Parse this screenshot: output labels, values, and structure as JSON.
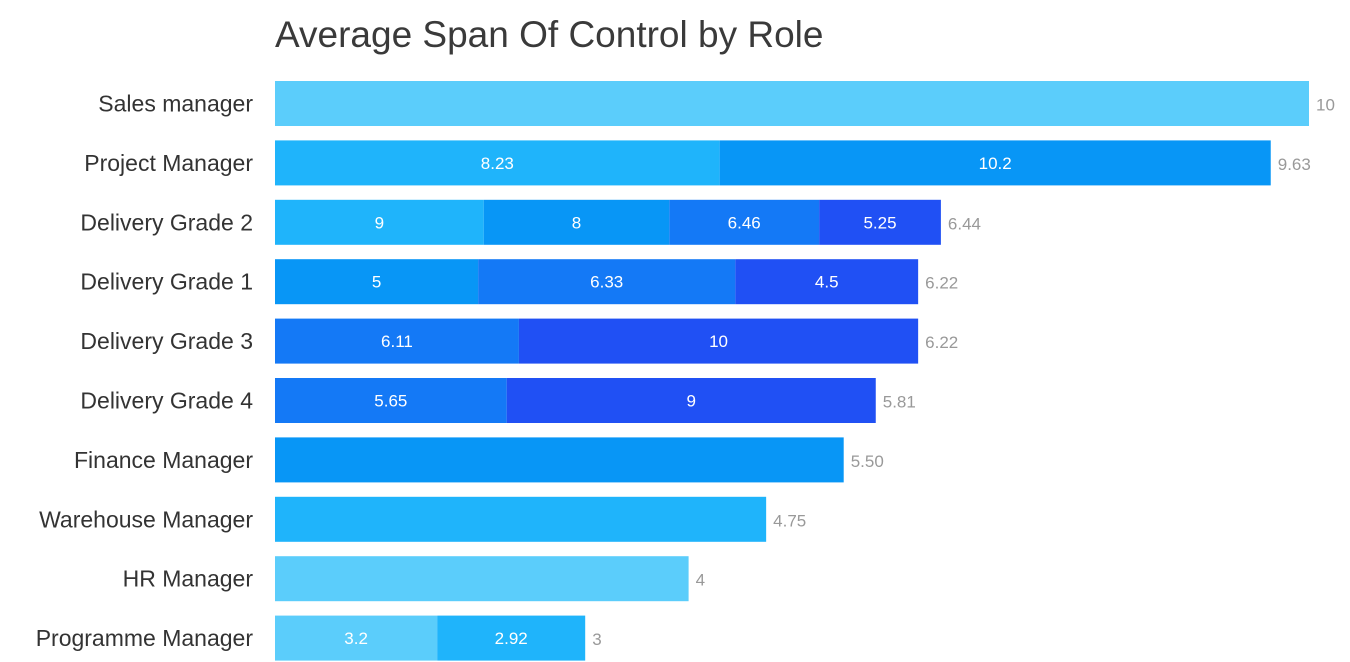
{
  "chart_data": {
    "type": "bar",
    "orientation": "horizontal",
    "stacked": true,
    "title": "Average Span Of Control by Role",
    "xlabel": "",
    "ylabel": "",
    "grid": false,
    "legend": "none",
    "categories": [
      "Sales manager",
      "Project Manager",
      "Delivery Grade 2",
      "Delivery Grade 1",
      "Delivery Grade 3",
      "Delivery Grade 4",
      "Finance Manager",
      "Warehouse Manager",
      "HR Manager",
      "Programme Manager"
    ],
    "totals": [
      "10",
      "9.63",
      "6.44",
      "6.22",
      "6.22",
      "5.81",
      "5.50",
      "4.75",
      "4",
      "3"
    ],
    "total_values": [
      10,
      9.63,
      6.44,
      6.22,
      6.22,
      5.81,
      5.5,
      4.75,
      4,
      3
    ],
    "segments": [
      [
        {
          "label": "",
          "value": 10,
          "color": "#5bcdfb"
        }
      ],
      [
        {
          "label": "8.23",
          "value": 8.23,
          "color": "#1fb4fb"
        },
        {
          "label": "10.2",
          "value": 10.2,
          "color": "#0896f6"
        }
      ],
      [
        {
          "label": "9",
          "value": 9,
          "color": "#1fb4fb"
        },
        {
          "label": "8",
          "value": 8,
          "color": "#0896f6"
        },
        {
          "label": "6.46",
          "value": 6.46,
          "color": "#1479f6"
        },
        {
          "label": "5.25",
          "value": 5.25,
          "color": "#2050f4"
        }
      ],
      [
        {
          "label": "5",
          "value": 5,
          "color": "#0896f6"
        },
        {
          "label": "6.33",
          "value": 6.33,
          "color": "#1479f6"
        },
        {
          "label": "4.5",
          "value": 4.5,
          "color": "#2050f4"
        }
      ],
      [
        {
          "label": "6.11",
          "value": 6.11,
          "color": "#1479f6"
        },
        {
          "label": "10",
          "value": 10,
          "color": "#2050f4"
        }
      ],
      [
        {
          "label": "5.65",
          "value": 5.65,
          "color": "#1479f6"
        },
        {
          "label": "9",
          "value": 9,
          "color": "#2050f4"
        }
      ],
      [
        {
          "label": "",
          "value": 5.5,
          "color": "#0896f6"
        }
      ],
      [
        {
          "label": "",
          "value": 4.75,
          "color": "#1fb4fb"
        }
      ],
      [
        {
          "label": "",
          "value": 4,
          "color": "#5bcdfb"
        }
      ],
      [
        {
          "label": "3.2",
          "value": 3.2,
          "color": "#5bcdfb"
        },
        {
          "label": "2.92",
          "value": 2.92,
          "color": "#1fb4fb"
        }
      ]
    ],
    "xlim": [
      0,
      10
    ]
  }
}
